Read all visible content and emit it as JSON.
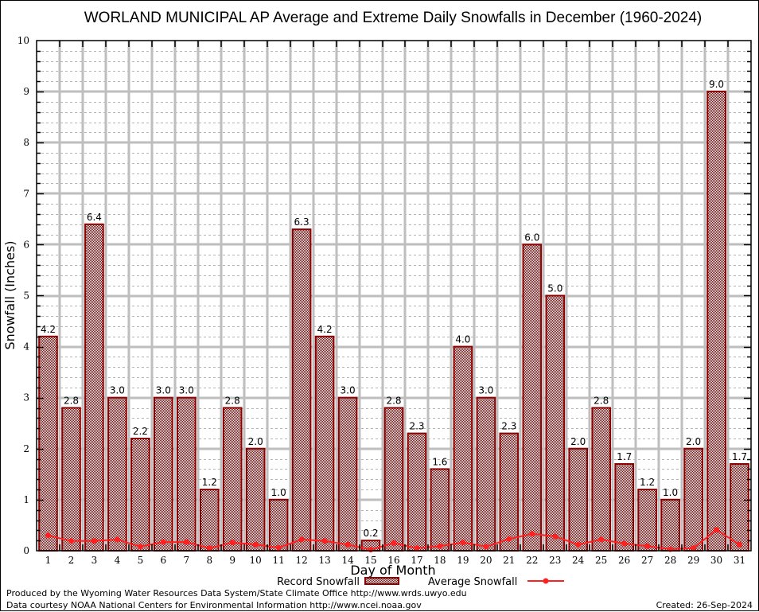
{
  "chart_data": {
    "type": "bar",
    "title": "WORLAND MUNICIPAL AP Average and Extreme Daily Snowfalls in December (1960-2024)",
    "xlabel": "Day of Month",
    "ylabel": "Snowfall (Inches)",
    "ylim": [
      0,
      10
    ],
    "yticks": [
      0,
      1,
      2,
      3,
      4,
      5,
      6,
      7,
      8,
      9,
      10
    ],
    "yminor_step": 0.2,
    "grid": true,
    "categories": [
      "1",
      "2",
      "3",
      "4",
      "5",
      "6",
      "7",
      "8",
      "9",
      "10",
      "11",
      "12",
      "13",
      "14",
      "15",
      "16",
      "17",
      "18",
      "19",
      "20",
      "21",
      "22",
      "23",
      "24",
      "25",
      "26",
      "27",
      "28",
      "29",
      "30",
      "31"
    ],
    "series": [
      {
        "name": "Record Snowfall",
        "kind": "bar",
        "color": "#8b0000",
        "values": [
          4.2,
          2.8,
          6.4,
          3.0,
          2.2,
          3.0,
          3.0,
          1.2,
          2.8,
          2.0,
          1.0,
          6.3,
          4.2,
          3.0,
          0.2,
          2.8,
          2.3,
          1.6,
          4.0,
          3.0,
          2.3,
          6.0,
          5.0,
          2.0,
          2.8,
          1.7,
          1.2,
          1.0,
          2.0,
          9.0,
          1.7
        ],
        "labels": [
          "4.2",
          "2.8",
          "6.4",
          "3.0",
          "2.2",
          "3.0",
          "3.0",
          "1.2",
          "2.8",
          "2.0",
          "1.0",
          "6.3",
          "4.2",
          "3.0",
          "0.2",
          "2.8",
          "2.3",
          "1.6",
          "4.0",
          "3.0",
          "2.3",
          "6.0",
          "5.0",
          "2.0",
          "2.8",
          "1.7",
          "1.2",
          "1.0",
          "2.0",
          "9.0",
          "1.7"
        ]
      },
      {
        "name": "Average Snowfall",
        "kind": "line",
        "color": "#ff2020",
        "values": [
          0.3,
          0.19,
          0.19,
          0.22,
          0.08,
          0.17,
          0.17,
          0.05,
          0.16,
          0.12,
          0.06,
          0.22,
          0.19,
          0.12,
          0.02,
          0.15,
          0.05,
          0.09,
          0.16,
          0.08,
          0.23,
          0.33,
          0.28,
          0.12,
          0.22,
          0.14,
          0.09,
          0.03,
          0.05,
          0.41,
          0.12
        ]
      }
    ],
    "legend": {
      "placement": "bottom-center",
      "items": [
        {
          "label": "Record Snowfall",
          "symbol": "hatched-box"
        },
        {
          "label": "Average Snowfall",
          "symbol": "line-with-dot"
        }
      ]
    }
  },
  "footer": {
    "line1": "Produced by the Wyoming Water Resources Data System/State Climate Office http://www.wrds.uwyo.edu",
    "line2": "Data courtesy NOAA National Centers for Environmental Information http://www.ncei.noaa.gov",
    "created": "Created: 26-Sep-2024"
  }
}
